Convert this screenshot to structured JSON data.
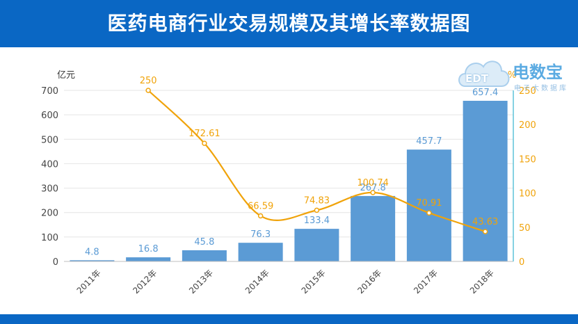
{
  "header": {
    "title": "医药电商行业交易规模及其增长率数据图"
  },
  "watermark": {
    "logo_text": "EDT",
    "brand": "电数宝",
    "sub": "电子大数据库"
  },
  "chart_data": {
    "type": "bar",
    "categories": [
      "2011年",
      "2012年",
      "2013年",
      "2014年",
      "2015年",
      "2016年",
      "2017年",
      "2018年"
    ],
    "series": [
      {
        "type": "bar",
        "axis": "left",
        "values": [
          4.8,
          16.8,
          45.8,
          76.3,
          133.4,
          267.8,
          457.7,
          657.4
        ],
        "labels": [
          "4.8",
          "16.8",
          "45.8",
          "76.3",
          "133.4",
          "267.8",
          "457.7",
          "657.4"
        ],
        "color": "#5b9bd5"
      },
      {
        "type": "line",
        "axis": "right",
        "values": [
          null,
          250,
          172.61,
          66.59,
          74.83,
          100.74,
          70.91,
          43.63
        ],
        "labels": [
          "",
          "250",
          "172.61",
          "66.59",
          "74.83",
          "100.74",
          "70.91",
          "43.63"
        ],
        "color": "#f0a30a"
      }
    ],
    "left_axis": {
      "label": "亿元",
      "ylim": [
        0,
        700
      ],
      "ticks": [
        "0",
        "100",
        "200",
        "300",
        "400",
        "500",
        "600",
        "700"
      ]
    },
    "right_axis": {
      "label": "%",
      "ylim": [
        0,
        250
      ],
      "ticks": [
        "0",
        "50",
        "100",
        "150",
        "200",
        "250"
      ]
    },
    "grid": true,
    "legend": "none"
  }
}
